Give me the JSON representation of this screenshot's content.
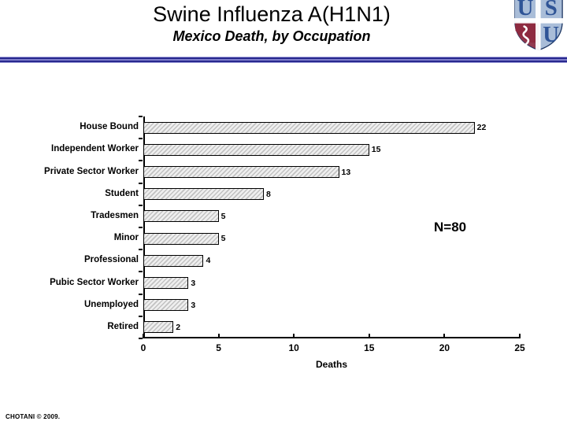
{
  "slide": {
    "title": "Swine Influenza A(H1N1)",
    "subtitle": "Mexico Death, by Occupation",
    "annotation": "N=80",
    "footer": "CHOTANI © 2009.",
    "logo": {
      "name": "usu-shield-logo",
      "letter_u_top": "U",
      "letter_s_top": "S",
      "letter_u_bottom": "U",
      "shield_light_blue": "#a9bdd8",
      "shield_dark_blue": "#2f5496",
      "shield_maroon": "#8e2a40"
    },
    "colors": {
      "divider_dark": "#28288e",
      "divider_light": "#8080cc",
      "bar_fill_light": "#efefef",
      "bar_hatch": "#c2c2c2",
      "bar_border": "#000000",
      "text": "#000000",
      "background": "#ffffff"
    }
  },
  "chart_data": {
    "type": "bar",
    "orientation": "horizontal",
    "title": "Mexico Death, by Occupation",
    "categories": [
      "House Bound",
      "Independent Worker",
      "Private Sector Worker",
      "Student",
      "Tradesmen",
      "Minor",
      "Professional",
      "Pubic Sector Worker",
      "Unemployed",
      "Retired"
    ],
    "values": [
      22,
      15,
      13,
      8,
      5,
      5,
      4,
      3,
      3,
      2
    ],
    "data_labels": [
      "22",
      "15",
      "13",
      "8",
      "5",
      "5",
      "4",
      "3",
      "3",
      "2"
    ],
    "xlabel": "Deaths",
    "xlim": [
      0,
      25
    ],
    "xticks": [
      0,
      5,
      10,
      15,
      20,
      25
    ],
    "grid": false,
    "legend": false,
    "annotation": "N=80",
    "bar_style": "diagonal-hatch"
  }
}
